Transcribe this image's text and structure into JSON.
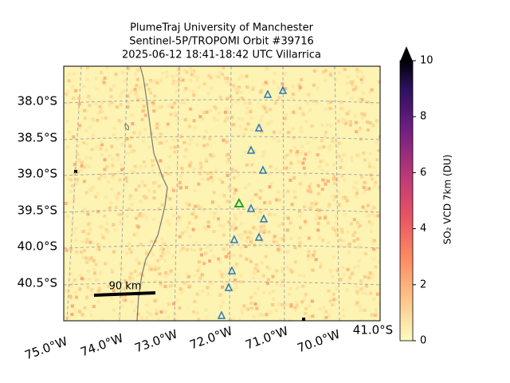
{
  "title": [
    "PlumeTraj    University of Manchester",
    "Sentinel-5P/TROPOMI Orbit #39716",
    "2025-06-12   18:41-18:42 UTC   Villarrica"
  ],
  "lat_labels": [
    "38.0°S",
    "38.5°S",
    "39.0°S",
    "39.5°S",
    "40.0°S",
    "40.5°S"
  ],
  "lon_labels": [
    "75.0°W",
    "74.0°W",
    "73.0°W",
    "72.0°W",
    "71.0°W",
    "70.0°W"
  ],
  "corner_label": "41.0°S",
  "scale_bar": "90 km",
  "colorbar": {
    "label": "SO₂ VCD 7km (DU)",
    "lim": [
      0,
      10
    ],
    "ticks": [
      0,
      2,
      4,
      6,
      8,
      10
    ]
  }
}
